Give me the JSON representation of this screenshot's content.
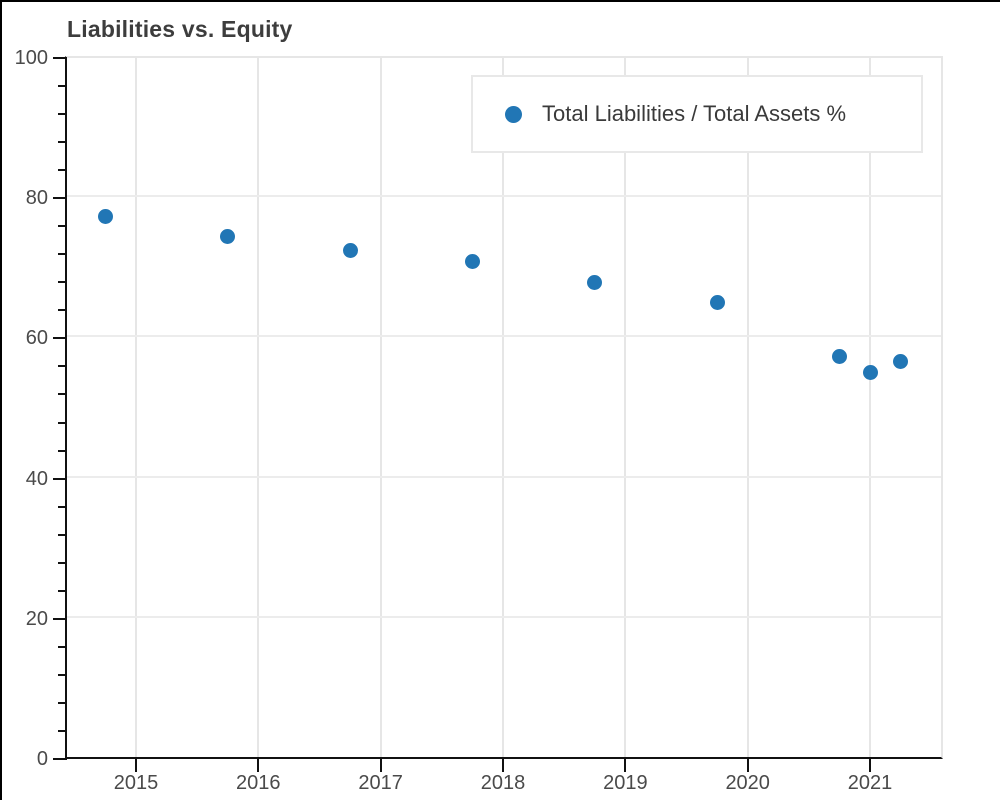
{
  "chart": {
    "title": "Liabilities vs. Equity"
  },
  "chart_data": {
    "type": "scatter",
    "title": "Liabilities vs. Equity",
    "series": [
      {
        "name": "Total Liabilities / Total Assets %",
        "points": [
          {
            "x": 2014.75,
            "y": 77.1
          },
          {
            "x": 2015.75,
            "y": 74.3
          },
          {
            "x": 2016.75,
            "y": 72.3
          },
          {
            "x": 2017.75,
            "y": 70.7
          },
          {
            "x": 2018.75,
            "y": 67.7
          },
          {
            "x": 2019.75,
            "y": 64.8
          },
          {
            "x": 2020.75,
            "y": 57.1
          },
          {
            "x": 2021.0,
            "y": 54.9
          },
          {
            "x": 2021.25,
            "y": 56.4
          }
        ]
      }
    ],
    "xlim": [
      2014.42,
      2021.58
    ],
    "ylim": [
      0,
      100
    ],
    "x_ticks": [
      2015,
      2016,
      2017,
      2018,
      2019,
      2020,
      2021
    ],
    "y_ticks": [
      0,
      20,
      40,
      60,
      80,
      100
    ],
    "y_minor_tick_interval": 4,
    "grid": true,
    "legend_position": "top-right",
    "marker_color": "#2176b5",
    "xlabel": "",
    "ylabel": ""
  }
}
